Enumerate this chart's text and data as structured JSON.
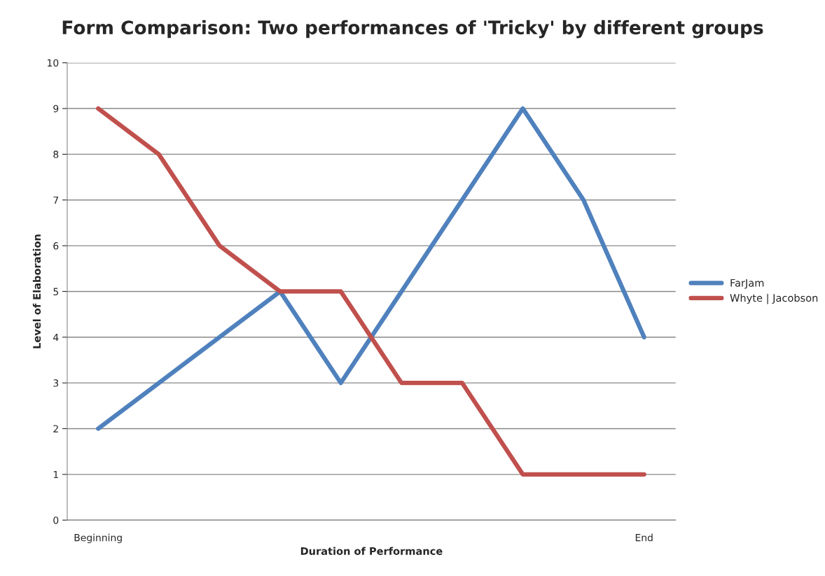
{
  "chart_data": {
    "type": "line",
    "title": "Form Comparison: Two performances of 'Tricky' by different groups",
    "xlabel": "Duration of Performance",
    "ylabel": "Level of Elaboration",
    "categories": [
      "Beginning",
      null,
      null,
      null,
      null,
      null,
      null,
      null,
      null,
      "End"
    ],
    "series": [
      {
        "name": "FarJam",
        "color": "#4f81bd",
        "values": [
          2,
          3,
          4,
          5,
          3,
          5,
          7,
          9,
          7,
          4
        ]
      },
      {
        "name": "Whyte | Jacobson",
        "color": "#c0504d",
        "values": [
          9,
          8,
          6,
          5,
          5,
          3,
          3,
          1,
          1,
          1
        ]
      }
    ],
    "ylim": [
      0,
      10
    ],
    "yticks": [
      0,
      1,
      2,
      3,
      4,
      5,
      6,
      7,
      8,
      9,
      10
    ],
    "grid": "y",
    "legend": "right",
    "marker": "none",
    "line_style": "solid"
  }
}
